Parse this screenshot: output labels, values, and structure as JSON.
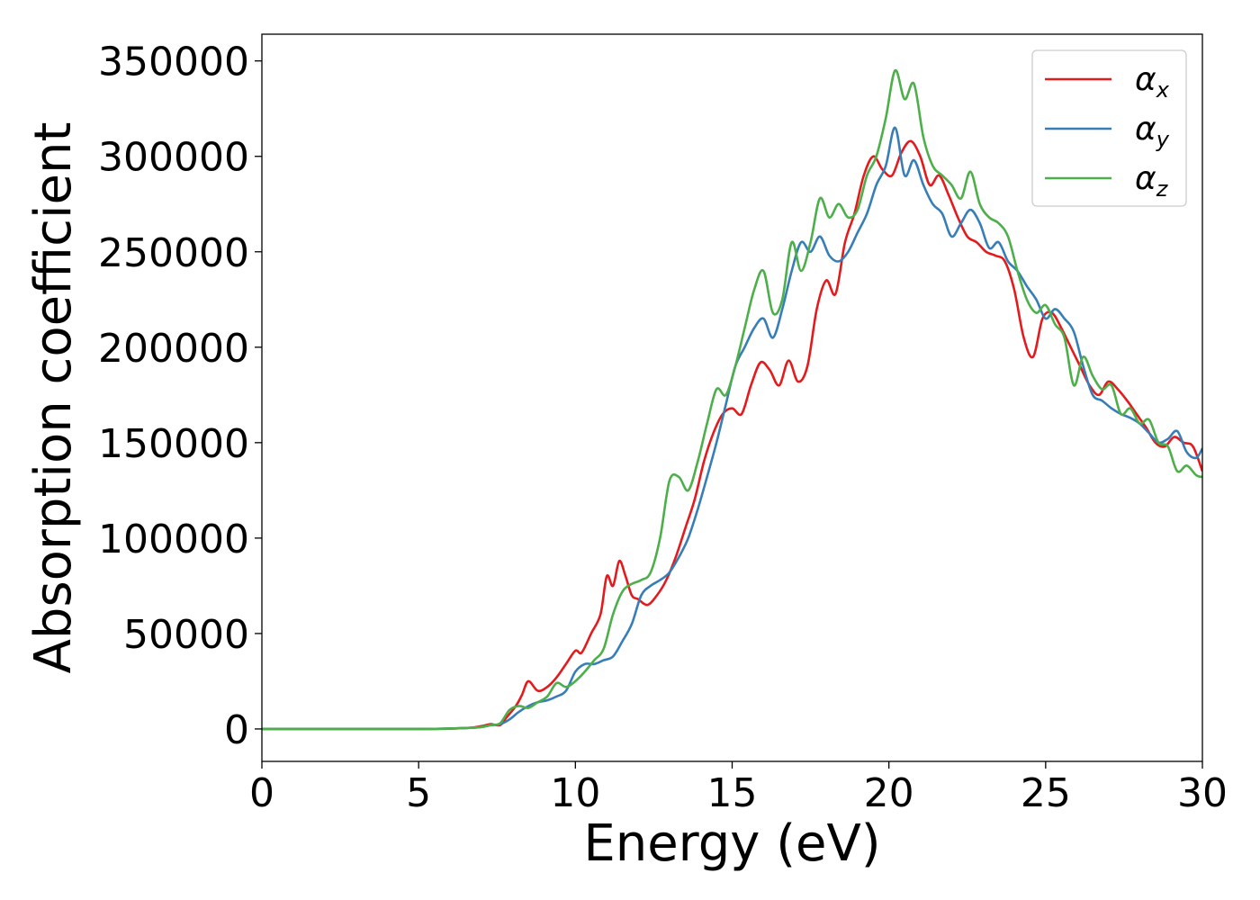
{
  "chart_data": {
    "type": "line",
    "xlabel": "Energy (eV)",
    "ylabel": "Absorption coefficient",
    "xlim": [
      0,
      30
    ],
    "ylim": [
      -17000,
      364000
    ],
    "xticks": [
      0,
      5,
      10,
      15,
      20,
      25,
      30
    ],
    "xtick_labels": [
      "0",
      "5",
      "10",
      "15",
      "20",
      "25",
      "30"
    ],
    "yticks": [
      0,
      50000,
      100000,
      150000,
      200000,
      250000,
      300000,
      350000
    ],
    "ytick_labels": [
      "0",
      "50000",
      "100000",
      "150000",
      "200000",
      "250000",
      "300000",
      "350000"
    ],
    "grid": false,
    "legend_position": "top-right",
    "series": [
      {
        "name": "α",
        "sub": "x",
        "color": "#e41a1c",
        "x": [
          0,
          5,
          6.5,
          7.0,
          7.3,
          7.6,
          7.8,
          8.1,
          8.3,
          8.5,
          8.8,
          9.1,
          9.4,
          9.7,
          10.0,
          10.2,
          10.5,
          10.8,
          11.0,
          11.2,
          11.4,
          11.6,
          11.8,
          12.0,
          12.3,
          12.6,
          12.9,
          13.2,
          13.5,
          13.8,
          14.1,
          14.4,
          14.7,
          15.0,
          15.3,
          15.6,
          15.9,
          16.2,
          16.5,
          16.8,
          17.1,
          17.4,
          17.7,
          18.0,
          18.3,
          18.6,
          18.9,
          19.2,
          19.5,
          19.8,
          20.1,
          20.4,
          20.7,
          21.0,
          21.3,
          21.6,
          21.9,
          22.2,
          22.5,
          22.8,
          23.1,
          23.4,
          23.7,
          24.0,
          24.3,
          24.6,
          24.9,
          25.2,
          25.5,
          25.8,
          26.1,
          26.4,
          26.7,
          27.0,
          27.3,
          27.6,
          27.9,
          28.2,
          28.5,
          28.8,
          29.1,
          29.4,
          29.7,
          30.0
        ],
        "y": [
          0,
          0,
          500,
          1500,
          2500,
          2000,
          6000,
          12000,
          18000,
          25000,
          20000,
          22000,
          27000,
          34000,
          41000,
          40000,
          50000,
          60000,
          80000,
          75000,
          88000,
          80000,
          70000,
          68000,
          65000,
          70000,
          78000,
          90000,
          105000,
          120000,
          140000,
          155000,
          165000,
          168000,
          165000,
          180000,
          192000,
          188000,
          180000,
          193000,
          182000,
          190000,
          220000,
          235000,
          228000,
          255000,
          270000,
          290000,
          300000,
          293000,
          290000,
          302000,
          308000,
          300000,
          285000,
          290000,
          280000,
          268000,
          258000,
          255000,
          250000,
          248000,
          245000,
          230000,
          205000,
          195000,
          215000,
          218000,
          210000,
          200000,
          190000,
          180000,
          175000,
          182000,
          178000,
          172000,
          165000,
          158000,
          150000,
          148000,
          153000,
          150000,
          148000,
          135000
        ]
      },
      {
        "name": "α",
        "sub": "y",
        "color": "#377eb8",
        "x": [
          0,
          5,
          6.5,
          7.0,
          7.3,
          7.6,
          7.9,
          8.2,
          8.5,
          8.8,
          9.1,
          9.4,
          9.7,
          10.0,
          10.3,
          10.6,
          10.9,
          11.2,
          11.5,
          11.8,
          12.1,
          12.4,
          12.7,
          13.0,
          13.3,
          13.6,
          13.9,
          14.2,
          14.5,
          14.8,
          15.1,
          15.4,
          15.7,
          16.0,
          16.3,
          16.6,
          16.9,
          17.2,
          17.5,
          17.8,
          18.1,
          18.4,
          18.7,
          19.0,
          19.3,
          19.6,
          19.9,
          20.2,
          20.5,
          20.8,
          21.1,
          21.4,
          21.7,
          22.0,
          22.3,
          22.6,
          22.9,
          23.2,
          23.5,
          23.8,
          24.1,
          24.4,
          24.7,
          25.0,
          25.3,
          25.6,
          25.9,
          26.2,
          26.5,
          26.8,
          27.1,
          27.4,
          27.7,
          28.0,
          28.3,
          28.6,
          28.9,
          29.2,
          29.5,
          29.8,
          30.0
        ],
        "y": [
          0,
          0,
          500,
          1000,
          2000,
          2500,
          5000,
          9000,
          12000,
          14000,
          15000,
          17000,
          20000,
          30000,
          34000,
          34000,
          36000,
          38000,
          46000,
          55000,
          70000,
          75000,
          78000,
          82000,
          90000,
          100000,
          115000,
          132000,
          150000,
          170000,
          190000,
          200000,
          210000,
          215000,
          205000,
          220000,
          240000,
          255000,
          250000,
          258000,
          248000,
          245000,
          250000,
          260000,
          270000,
          285000,
          295000,
          315000,
          290000,
          298000,
          285000,
          275000,
          270000,
          258000,
          265000,
          272000,
          265000,
          252000,
          255000,
          245000,
          240000,
          232000,
          225000,
          215000,
          220000,
          215000,
          208000,
          190000,
          175000,
          172000,
          168000,
          165000,
          163000,
          160000,
          155000,
          150000,
          152000,
          156000,
          145000,
          142000,
          147000
        ]
      },
      {
        "name": "α",
        "sub": "z",
        "color": "#4daf4a",
        "x": [
          0,
          5,
          6.5,
          7.0,
          7.3,
          7.6,
          7.9,
          8.2,
          8.5,
          8.8,
          9.1,
          9.4,
          9.7,
          10.0,
          10.3,
          10.6,
          10.9,
          11.2,
          11.5,
          11.8,
          12.1,
          12.4,
          12.7,
          13.0,
          13.3,
          13.6,
          13.9,
          14.2,
          14.5,
          14.8,
          15.1,
          15.4,
          15.7,
          16.0,
          16.3,
          16.6,
          16.9,
          17.2,
          17.5,
          17.8,
          18.1,
          18.4,
          18.7,
          19.0,
          19.3,
          19.6,
          19.9,
          20.2,
          20.5,
          20.8,
          21.1,
          21.4,
          21.7,
          22.0,
          22.3,
          22.6,
          22.9,
          23.2,
          23.5,
          23.8,
          24.1,
          24.4,
          24.7,
          25.0,
          25.3,
          25.6,
          25.9,
          26.2,
          26.5,
          26.8,
          27.1,
          27.4,
          27.7,
          28.0,
          28.3,
          28.6,
          28.9,
          29.2,
          29.5,
          29.8,
          30.0
        ],
        "y": [
          0,
          0,
          500,
          1000,
          2000,
          3000,
          10000,
          12000,
          11000,
          14000,
          17000,
          24000,
          22000,
          25000,
          30000,
          36000,
          42000,
          60000,
          72000,
          76000,
          78000,
          82000,
          100000,
          130000,
          132000,
          125000,
          140000,
          160000,
          178000,
          175000,
          190000,
          210000,
          230000,
          240000,
          218000,
          225000,
          255000,
          240000,
          255000,
          278000,
          268000,
          275000,
          268000,
          272000,
          290000,
          300000,
          320000,
          345000,
          330000,
          338000,
          310000,
          295000,
          290000,
          285000,
          278000,
          292000,
          275000,
          268000,
          265000,
          258000,
          240000,
          225000,
          218000,
          222000,
          212000,
          205000,
          180000,
          195000,
          185000,
          178000,
          180000,
          165000,
          168000,
          160000,
          162000,
          150000,
          148000,
          135000,
          138000,
          133000,
          132000
        ]
      }
    ]
  }
}
